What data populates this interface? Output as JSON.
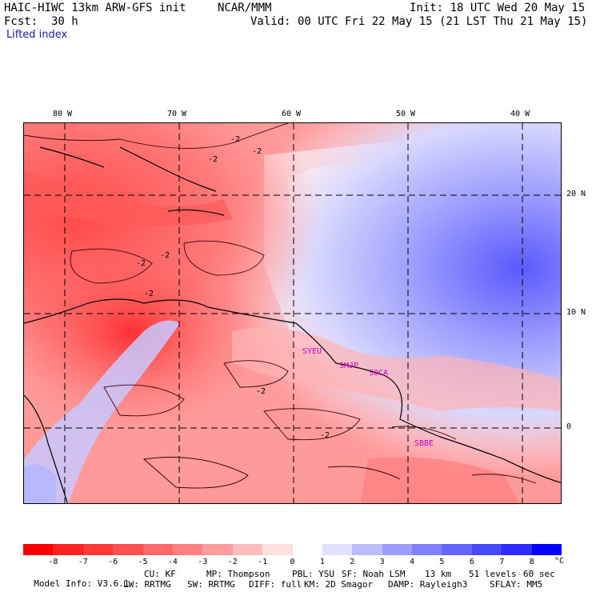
{
  "header": {
    "model_title": "HAIC-HIWC 13km ARW-GFS init",
    "org": "NCAR/MMM",
    "init": "Init: 18 UTC Wed 20 May 15",
    "fcst_label": "Fcst:",
    "fcst_value": "30 h",
    "valid": "Valid: 00 UTC Fri 22 May 15 (21 LST Thu 21 May 15)",
    "field": "Lifted index"
  },
  "map": {
    "lon_labels": [
      "80 W",
      "70 W",
      "60 W",
      "50 W",
      "40 W"
    ],
    "lat_labels": [
      "20 N",
      "10 N",
      "0"
    ],
    "contour_labels": [
      "-2",
      "-2",
      "-2",
      "-2",
      "-2",
      "-2",
      "-2",
      "-2"
    ],
    "station_labels": [
      "SYEU",
      "SMJP",
      "SOCA",
      "SBBE"
    ]
  },
  "colorbar": {
    "labels": [
      "-8",
      "-7",
      "-6",
      "-5",
      "-4",
      "-3",
      "-2",
      "-1",
      "0",
      "1",
      "2",
      "3",
      "4",
      "5",
      "6",
      "7",
      "8"
    ],
    "unit": "°C",
    "colors": [
      "#ff0000",
      "#ff2020",
      "#ff3838",
      "#ff5050",
      "#ff6868",
      "#ff8080",
      "#ff9c9c",
      "#ffbcbc",
      "#ffe0e0",
      "#ffffff",
      "#e0e0ff",
      "#bcbcff",
      "#9c9cff",
      "#8080ff",
      "#6464ff",
      "#4848ff",
      "#2c2cff",
      "#0000ff"
    ]
  },
  "model_info": {
    "line1": [
      "Model Info: V3.6.1",
      "CU: KF",
      "MP: Thompson",
      "PBL: YSU",
      "SF: Noah LSM",
      "13 km",
      "51 levels",
      "60 sec"
    ],
    "line2": [
      "LW: RRTMG",
      "SW: RRTMG",
      "DIFF: full",
      "KM: 2D Smagor",
      "DAMP: Rayleigh3",
      "SFLAY: MM5"
    ]
  }
}
